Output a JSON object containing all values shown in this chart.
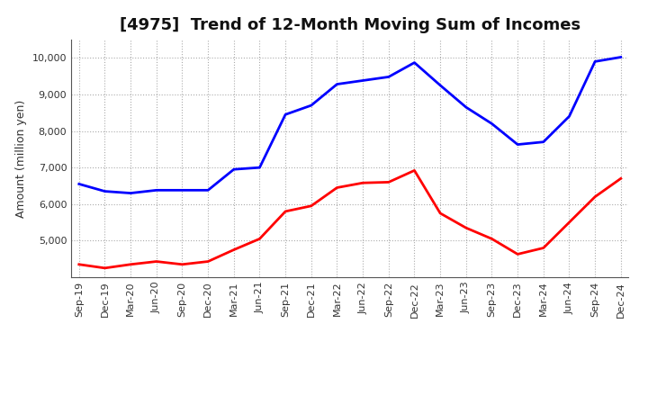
{
  "title": "[4975]  Trend of 12-Month Moving Sum of Incomes",
  "ylabel": "Amount (million yen)",
  "x_labels": [
    "Sep-19",
    "Dec-19",
    "Mar-20",
    "Jun-20",
    "Sep-20",
    "Dec-20",
    "Mar-21",
    "Jun-21",
    "Sep-21",
    "Dec-21",
    "Mar-22",
    "Jun-22",
    "Sep-22",
    "Dec-22",
    "Mar-23",
    "Jun-23",
    "Sep-23",
    "Dec-23",
    "Mar-24",
    "Jun-24",
    "Sep-24",
    "Dec-24"
  ],
  "ordinary_income": [
    6550,
    6350,
    6300,
    6380,
    6380,
    6380,
    6950,
    7000,
    8450,
    8700,
    9280,
    9380,
    9480,
    9870,
    9250,
    8650,
    8200,
    7630,
    7700,
    8400,
    9900,
    10020
  ],
  "net_income": [
    4350,
    4250,
    4350,
    4430,
    4350,
    4430,
    4750,
    5050,
    5800,
    5950,
    6450,
    6580,
    6600,
    6920,
    5750,
    5350,
    5050,
    4630,
    4800,
    5500,
    6200,
    6700
  ],
  "ordinary_color": "#0000FF",
  "net_color": "#FF0000",
  "ylim_min": 4000,
  "ylim_max": 10500,
  "yticks": [
    5000,
    6000,
    7000,
    8000,
    9000,
    10000
  ],
  "ytick_labels": [
    "5,000",
    "6,000",
    "7,000",
    "8,000",
    "9,000",
    "10,000"
  ],
  "background_color": "#FFFFFF",
  "plot_bg_color": "#FFFFFF",
  "grid_color": "#888888",
  "title_fontsize": 13,
  "label_fontsize": 9,
  "tick_fontsize": 8
}
